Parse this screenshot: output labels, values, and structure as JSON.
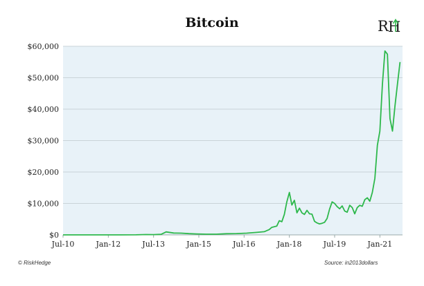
{
  "chart_data": {
    "type": "line",
    "title": "Bitcoin",
    "xlabel": "",
    "ylabel": "",
    "x_tick_labels": [
      "Jul-10",
      "Jan-12",
      "Jul-13",
      "Jan-15",
      "Jul-16",
      "Jan-18",
      "Jul-19",
      "Jan-21"
    ],
    "y_tick_labels": [
      "$0",
      "$10,000",
      "$20,000",
      "$30,000",
      "$40,000",
      "$50,000",
      "$60,000"
    ],
    "ylim": [
      0,
      60000
    ],
    "xlim": [
      "2010-07",
      "2021-10"
    ],
    "grid": "horizontal",
    "line_color": "#2db84b",
    "plot_background": "#e8f2f8",
    "series": [
      {
        "x": [
          "2010-07",
          "2011-01",
          "2011-06",
          "2011-12",
          "2012-06",
          "2012-12",
          "2013-04",
          "2013-07",
          "2013-10",
          "2013-12",
          "2014-03",
          "2014-06",
          "2014-09",
          "2014-12",
          "2015-04",
          "2015-08",
          "2015-12",
          "2016-04",
          "2016-08",
          "2016-12",
          "2017-03",
          "2017-05",
          "2017-06",
          "2017-08",
          "2017-09",
          "2017-10",
          "2017-11",
          "2017-12",
          "2018-01",
          "2018-02",
          "2018-03",
          "2018-04",
          "2018-05",
          "2018-06",
          "2018-07",
          "2018-08",
          "2018-09",
          "2018-10",
          "2018-11",
          "2018-12",
          "2019-01",
          "2019-02",
          "2019-03",
          "2019-04",
          "2019-05",
          "2019-06",
          "2019-07",
          "2019-08",
          "2019-09",
          "2019-10",
          "2019-11",
          "2019-12",
          "2020-01",
          "2020-02",
          "2020-03",
          "2020-04",
          "2020-05",
          "2020-06",
          "2020-07",
          "2020-08",
          "2020-09",
          "2020-10",
          "2020-11",
          "2020-12",
          "2021-01",
          "2021-02",
          "2021-03",
          "2021-04",
          "2021-05",
          "2021-06",
          "2021-07",
          "2021-08",
          "2021-09"
        ],
        "values": [
          0,
          0,
          10,
          4,
          6,
          12,
          100,
          80,
          180,
          950,
          600,
          550,
          400,
          300,
          220,
          230,
          380,
          420,
          560,
          800,
          1000,
          1700,
          2400,
          2800,
          4500,
          4200,
          6500,
          10500,
          13500,
          9500,
          11000,
          7000,
          8500,
          7000,
          6500,
          7800,
          6700,
          6600,
          4300,
          3800,
          3500,
          3700,
          4000,
          5200,
          8200,
          10500,
          10000,
          9000,
          8300,
          9200,
          7600,
          7200,
          9400,
          8700,
          6700,
          8700,
          9400,
          9100,
          11200,
          11800,
          10700,
          13500,
          18000,
          28500,
          33000,
          48000,
          58500,
          57500,
          37000,
          33000,
          41000,
          48000,
          55000
        ]
      }
    ]
  },
  "branding": {
    "logo_text_r": "R",
    "logo_text_h": "H",
    "logo_color_dark": "#1a1a1a",
    "logo_color_accent": "#2db84b"
  },
  "footer": {
    "left": "© RiskHedge",
    "right": "Source: in2013dollars"
  }
}
